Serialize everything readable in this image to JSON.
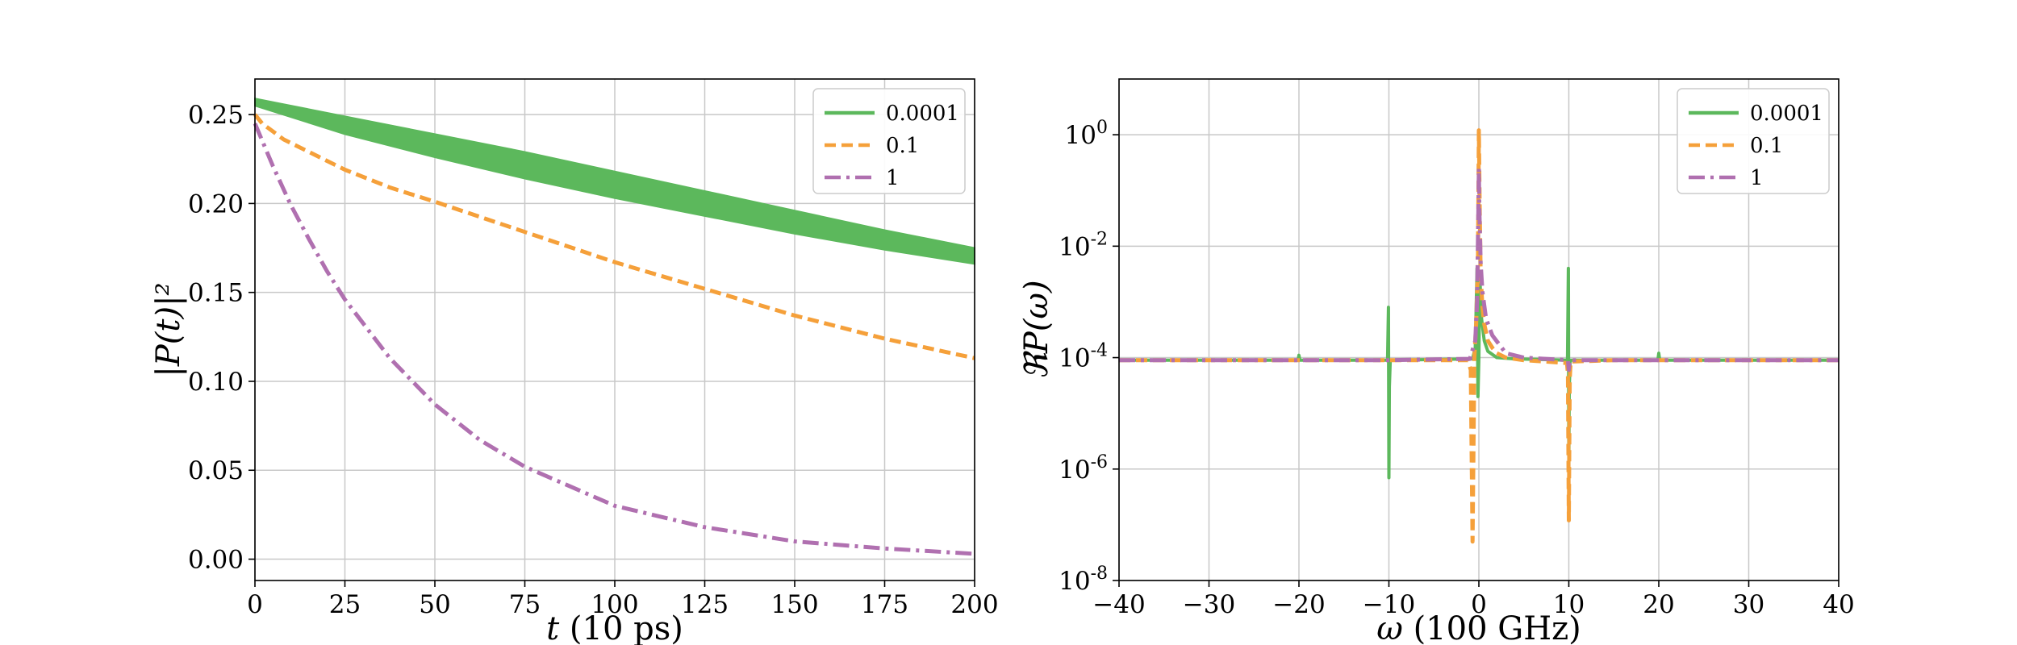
{
  "colors": {
    "s1": "#5cb85c",
    "s2": "#f5a03a",
    "s3": "#b070b0"
  },
  "chart_data": [
    {
      "type": "line",
      "title": "",
      "xlabel_var": "t",
      "xlabel_unit": " (10 ps)",
      "ylabel_text": "|P(t)|²",
      "xlim": [
        0,
        200
      ],
      "ylim": [
        -0.012,
        0.27
      ],
      "xticks": [
        0,
        25,
        50,
        75,
        100,
        125,
        150,
        175,
        200
      ],
      "xtick_labels": [
        "0",
        "25",
        "50",
        "75",
        "100",
        "125",
        "150",
        "175",
        "200"
      ],
      "yticks": [
        0.0,
        0.05,
        0.1,
        0.15,
        0.2,
        0.25
      ],
      "ytick_labels": [
        "0.00",
        "0.05",
        "0.10",
        "0.15",
        "0.20",
        "0.25"
      ],
      "grid": true,
      "legend": "top-right",
      "series": [
        {
          "name": "0.0001",
          "style": "solid",
          "band": true,
          "x": [
            0,
            25,
            50,
            75,
            100,
            125,
            150,
            175,
            200
          ],
          "upper": [
            0.259,
            0.249,
            0.239,
            0.229,
            0.218,
            0.207,
            0.196,
            0.185,
            0.175
          ],
          "lower": [
            0.255,
            0.239,
            0.226,
            0.214,
            0.203,
            0.193,
            0.183,
            0.174,
            0.166
          ]
        },
        {
          "name": "0.1",
          "style": "dashed",
          "x": [
            0,
            2,
            4,
            6,
            8,
            10,
            15,
            20,
            25,
            37.5,
            50,
            75,
            100,
            125,
            150,
            175,
            200
          ],
          "y": [
            0.25,
            0.245,
            0.242,
            0.239,
            0.236,
            0.234,
            0.229,
            0.224,
            0.219,
            0.209,
            0.201,
            0.184,
            0.167,
            0.152,
            0.137,
            0.124,
            0.113
          ]
        },
        {
          "name": "1",
          "style": "dashdot",
          "x": [
            0,
            5,
            10,
            15,
            20,
            25,
            37.5,
            50,
            62.5,
            75,
            100,
            125,
            150,
            175,
            200
          ],
          "y": [
            0.245,
            0.221,
            0.199,
            0.18,
            0.162,
            0.146,
            0.113,
            0.087,
            0.067,
            0.052,
            0.03,
            0.018,
            0.01,
            0.006,
            0.003
          ]
        }
      ]
    },
    {
      "type": "line",
      "title": "",
      "xlabel_var": "ω",
      "xlabel_unit": " (100 GHz)",
      "ylabel_text": "ℜP(ω)",
      "yscale": "log",
      "xlim": [
        -40,
        40
      ],
      "ylim": [
        1e-08,
        10
      ],
      "xticks": [
        -40,
        -30,
        -20,
        -10,
        0,
        10,
        20,
        30,
        40
      ],
      "xtick_labels": [
        "−40",
        "−30",
        "−20",
        "−10",
        "0",
        "10",
        "20",
        "30",
        "40"
      ],
      "yticks": [
        1e-08,
        1e-06,
        0.0001,
        0.01,
        1
      ],
      "ytick_base": [
        "10",
        "10",
        "10",
        "10",
        "10"
      ],
      "ytick_exp": [
        "-8",
        "-6",
        "-4",
        "-2",
        "0"
      ],
      "grid": true,
      "legend": "top-right",
      "series": [
        {
          "name": "0.0001",
          "style": "solid",
          "x": [
            -40,
            -20.1,
            -20,
            -19.9,
            -10.15,
            -10.05,
            -10.0,
            -9.95,
            -9.85,
            -0.7,
            -0.4,
            -0.2,
            -0.1,
            0,
            0.1,
            0.3,
            0.6,
            1,
            2,
            4,
            9.85,
            9.95,
            10.0,
            10.05,
            10.15,
            19.9,
            20,
            20.1,
            40
          ],
          "y": [
            9e-05,
            9e-05,
            0.00011,
            9e-05,
            9e-05,
            0.0008,
            7e-07,
            3e-05,
            9e-05,
            9.5e-05,
            0.00015,
            0.004,
            2e-05,
            0.0001,
            0.003,
            0.0005,
            0.0002,
            0.00013,
            0.0001,
            9.5e-05,
            9e-05,
            0.004,
            1e-06,
            3e-05,
            9e-05,
            9e-05,
            0.00012,
            9e-05,
            9e-05
          ]
        },
        {
          "name": "0.1",
          "style": "dashed",
          "x": [
            -40,
            -10,
            -1.2,
            -0.9,
            -0.7,
            -0.5,
            -0.3,
            -0.1,
            0,
            0.1,
            0.2,
            0.4,
            0.6,
            1,
            1.5,
            2,
            3,
            5,
            9.8,
            9.9,
            10.0,
            10.1,
            10.2,
            15,
            40
          ],
          "y": [
            9e-05,
            9e-05,
            9e-05,
            6e-05,
            5e-08,
            0.0001,
            0.0004,
            0.005,
            1.2,
            0.04,
            0.003,
            0.0008,
            0.0004,
            0.0002,
            0.00015,
            0.00012,
            0.0001,
            9e-05,
            8e-05,
            5e-05,
            1.2e-07,
            4e-05,
            8.5e-05,
            9e-05,
            9e-05
          ]
        },
        {
          "name": "1",
          "style": "dashdot",
          "x": [
            -40,
            -10,
            -1,
            -0.4,
            -0.2,
            -0.05,
            0,
            0.05,
            0.2,
            0.4,
            0.8,
            1.5,
            3,
            5,
            9.9,
            10.0,
            10.1,
            20,
            40
          ],
          "y": [
            9e-05,
            9e-05,
            9.5e-05,
            0.0002,
            0.001,
            0.05,
            0.25,
            0.05,
            0.005,
            0.0015,
            0.0005,
            0.00025,
            0.00012,
            0.0001,
            9e-05,
            6e-05,
            9e-05,
            9e-05,
            9e-05
          ]
        }
      ]
    }
  ]
}
